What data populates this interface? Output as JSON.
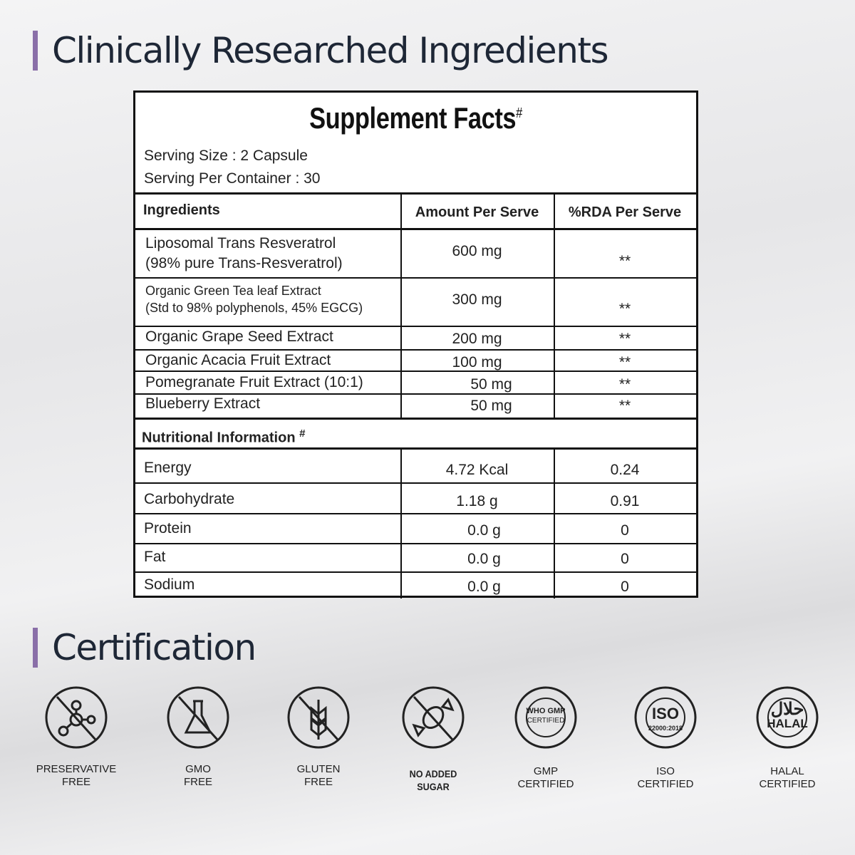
{
  "headings": {
    "ingredients": "Clinically Researched Ingredients",
    "certification": "Certification"
  },
  "accent_color": "#8a6fa8",
  "facts": {
    "title": "Supplement Facts",
    "title_mark": "#",
    "serving_size": "Serving Size : 2 Capsule",
    "serving_per_container": "Serving Per Container : 30",
    "columns": [
      "Ingredients",
      "Amount Per Serve",
      "%RDA Per Serve"
    ],
    "ingredients": [
      {
        "name": "Liposomal Trans Resveratrol",
        "sub": "(98% pure Trans-Resveratrol)",
        "amount": "600 mg",
        "rda": "**"
      },
      {
        "name": "Organic Green Tea leaf Extract",
        "sub": "(Std to 98% polyphenols, 45% EGCG)",
        "amount": "300 mg",
        "rda": "**"
      },
      {
        "name": "Organic Grape Seed Extract",
        "sub": "",
        "amount": "200 mg",
        "rda": "**"
      },
      {
        "name": "Organic Acacia Fruit Extract",
        "sub": "",
        "amount": "100 mg",
        "rda": "**"
      },
      {
        "name": "Pomegranate Fruit Extract (10:1)",
        "sub": "",
        "amount": "50 mg",
        "rda": "**"
      },
      {
        "name": "Blueberry Extract",
        "sub": "",
        "amount": "50 mg",
        "rda": "**"
      }
    ],
    "nutrition_header": "Nutritional Information",
    "nutrition_mark": "#",
    "nutrition": [
      {
        "name": "Energy",
        "amount": "4.72 Kcal",
        "rda": "0.24"
      },
      {
        "name": "Carbohydrate",
        "amount": "1.18 g",
        "rda": "0.91"
      },
      {
        "name": "Protein",
        "amount": "0.0 g",
        "rda": "0"
      },
      {
        "name": "Fat",
        "amount": "0.0 g",
        "rda": "0"
      },
      {
        "name": "Sodium",
        "amount": "0.0 g",
        "rda": "0"
      }
    ]
  },
  "certifications": [
    {
      "icon": "no-preservative-icon",
      "line1": "PRESERVATIVE",
      "line2": "FREE"
    },
    {
      "icon": "no-gmo-flask-icon",
      "line1": "GMO",
      "line2": "FREE"
    },
    {
      "icon": "no-gluten-wheat-icon",
      "line1": "GLUTEN",
      "line2": "FREE"
    },
    {
      "icon": "no-sugar-candy-icon",
      "line1": "NO ADDED",
      "line2": "SUGAR"
    },
    {
      "icon": "gmp-seal-icon",
      "line1": "GMP",
      "line2": "CERTIFIED",
      "seal": [
        "WHO GMP",
        "CERTIFIED"
      ]
    },
    {
      "icon": "iso-seal-icon",
      "line1": "ISO",
      "line2": "CERTIFIED",
      "seal": [
        "ISO",
        "22000:2018"
      ]
    },
    {
      "icon": "halal-icon",
      "line1": "HALAL",
      "line2": "CERTIFIED",
      "seal": [
        "حلال",
        "HALAL"
      ]
    }
  ]
}
